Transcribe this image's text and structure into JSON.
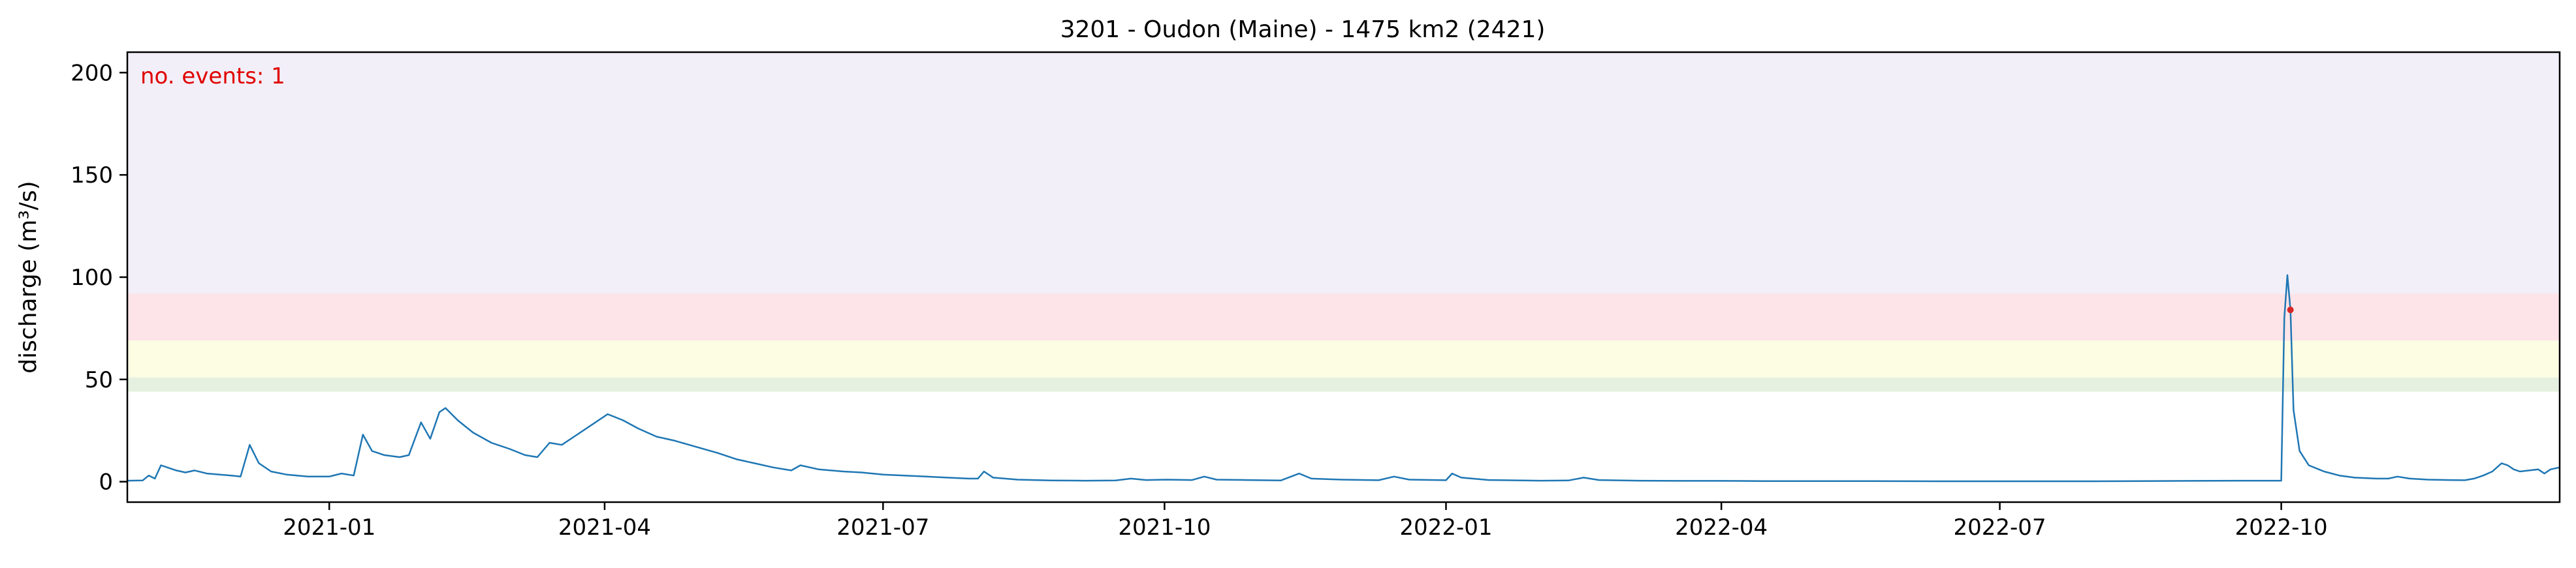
{
  "chart_data": {
    "type": "line",
    "title": "3201 - Oudon (Maine) - 1475 km2 (2421)",
    "ylabel": "discharge (m³/s)",
    "xlabel": "",
    "xlim": [
      "2020-10-27",
      "2022-12-31"
    ],
    "ylim": [
      -10,
      210
    ],
    "grid": false,
    "xticks": [
      {
        "date": "2021-01-01",
        "label": "2021-01"
      },
      {
        "date": "2021-04-01",
        "label": "2021-04"
      },
      {
        "date": "2021-07-01",
        "label": "2021-07"
      },
      {
        "date": "2021-10-01",
        "label": "2021-10"
      },
      {
        "date": "2022-01-01",
        "label": "2022-01"
      },
      {
        "date": "2022-04-01",
        "label": "2022-04"
      },
      {
        "date": "2022-07-01",
        "label": "2022-07"
      },
      {
        "date": "2022-10-01",
        "label": "2022-10"
      }
    ],
    "yticks": [
      0,
      50,
      100,
      150,
      200
    ],
    "threshold_bands": [
      {
        "from": 44,
        "to": 51,
        "color": "#e6f0e0"
      },
      {
        "from": 51,
        "to": 69,
        "color": "#fdfde4"
      },
      {
        "from": 69,
        "to": 92,
        "color": "#fde4e8"
      },
      {
        "from": 92,
        "to": 210,
        "color": "#f2eff9"
      }
    ],
    "series": [
      {
        "color": "#1f77b4",
        "points": [
          [
            "2020-10-27",
            0.5
          ],
          [
            "2020-11-01",
            0.6
          ],
          [
            "2020-11-03",
            3.0
          ],
          [
            "2020-11-05",
            1.5
          ],
          [
            "2020-11-07",
            8.0
          ],
          [
            "2020-11-12",
            5.5
          ],
          [
            "2020-11-15",
            4.5
          ],
          [
            "2020-11-18",
            5.5
          ],
          [
            "2020-11-22",
            4.0
          ],
          [
            "2020-11-30",
            3.0
          ],
          [
            "2020-12-03",
            2.5
          ],
          [
            "2020-12-06",
            18.0
          ],
          [
            "2020-12-09",
            9.0
          ],
          [
            "2020-12-13",
            5.0
          ],
          [
            "2020-12-18",
            3.5
          ],
          [
            "2020-12-25",
            2.5
          ],
          [
            "2021-01-01",
            2.5
          ],
          [
            "2021-01-05",
            4.0
          ],
          [
            "2021-01-09",
            3.0
          ],
          [
            "2021-01-12",
            23.0
          ],
          [
            "2021-01-15",
            15.0
          ],
          [
            "2021-01-19",
            13.0
          ],
          [
            "2021-01-24",
            12.0
          ],
          [
            "2021-01-27",
            13.0
          ],
          [
            "2021-01-31",
            29.0
          ],
          [
            "2021-02-03",
            21.0
          ],
          [
            "2021-02-06",
            34.0
          ],
          [
            "2021-02-08",
            36.0
          ],
          [
            "2021-02-12",
            30.0
          ],
          [
            "2021-02-17",
            24.0
          ],
          [
            "2021-02-23",
            19.0
          ],
          [
            "2021-03-01",
            16.0
          ],
          [
            "2021-03-06",
            13.0
          ],
          [
            "2021-03-10",
            12.0
          ],
          [
            "2021-03-14",
            19.0
          ],
          [
            "2021-03-18",
            18.0
          ],
          [
            "2021-03-23",
            23.0
          ],
          [
            "2021-03-28",
            28.0
          ],
          [
            "2021-04-02",
            33.0
          ],
          [
            "2021-04-07",
            30.0
          ],
          [
            "2021-04-12",
            26.0
          ],
          [
            "2021-04-18",
            22.0
          ],
          [
            "2021-04-24",
            20.0
          ],
          [
            "2021-05-01",
            17.0
          ],
          [
            "2021-05-08",
            14.0
          ],
          [
            "2021-05-14",
            11.0
          ],
          [
            "2021-05-20",
            9.0
          ],
          [
            "2021-05-26",
            7.0
          ],
          [
            "2021-06-01",
            5.5
          ],
          [
            "2021-06-04",
            8.0
          ],
          [
            "2021-06-10",
            6.0
          ],
          [
            "2021-06-18",
            5.0
          ],
          [
            "2021-06-24",
            4.5
          ],
          [
            "2021-07-01",
            3.5
          ],
          [
            "2021-07-08",
            3.0
          ],
          [
            "2021-07-15",
            2.5
          ],
          [
            "2021-07-22",
            2.0
          ],
          [
            "2021-07-29",
            1.5
          ],
          [
            "2021-08-01",
            1.5
          ],
          [
            "2021-08-03",
            5.0
          ],
          [
            "2021-08-06",
            2.0
          ],
          [
            "2021-08-14",
            1.0
          ],
          [
            "2021-08-25",
            0.6
          ],
          [
            "2021-09-05",
            0.5
          ],
          [
            "2021-09-15",
            0.6
          ],
          [
            "2021-09-20",
            1.5
          ],
          [
            "2021-09-25",
            0.8
          ],
          [
            "2021-10-02",
            1.0
          ],
          [
            "2021-10-10",
            0.8
          ],
          [
            "2021-10-14",
            2.5
          ],
          [
            "2021-10-18",
            1.0
          ],
          [
            "2021-10-28",
            0.8
          ],
          [
            "2021-11-08",
            0.6
          ],
          [
            "2021-11-14",
            4.0
          ],
          [
            "2021-11-18",
            1.5
          ],
          [
            "2021-11-28",
            1.0
          ],
          [
            "2021-12-10",
            0.7
          ],
          [
            "2021-12-15",
            2.5
          ],
          [
            "2021-12-20",
            1.0
          ],
          [
            "2022-01-01",
            0.7
          ],
          [
            "2022-01-03",
            4.0
          ],
          [
            "2022-01-06",
            2.0
          ],
          [
            "2022-01-15",
            0.8
          ],
          [
            "2022-02-01",
            0.5
          ],
          [
            "2022-02-10",
            0.6
          ],
          [
            "2022-02-15",
            2.0
          ],
          [
            "2022-02-20",
            0.8
          ],
          [
            "2022-03-05",
            0.5
          ],
          [
            "2022-03-20",
            0.4
          ],
          [
            "2022-04-01",
            0.4
          ],
          [
            "2022-04-15",
            0.3
          ],
          [
            "2022-05-01",
            0.3
          ],
          [
            "2022-05-20",
            0.3
          ],
          [
            "2022-06-10",
            0.2
          ],
          [
            "2022-06-25",
            0.2
          ],
          [
            "2022-07-01",
            0.2
          ],
          [
            "2022-08-01",
            0.2
          ],
          [
            "2022-08-15",
            0.3
          ],
          [
            "2022-09-01",
            0.4
          ],
          [
            "2022-09-20",
            0.5
          ],
          [
            "2022-10-01",
            0.5
          ],
          [
            "2022-10-02",
            80.0
          ],
          [
            "2022-10-03",
            101.0
          ],
          [
            "2022-10-04",
            84.0
          ],
          [
            "2022-10-05",
            35.0
          ],
          [
            "2022-10-07",
            15.0
          ],
          [
            "2022-10-10",
            8.0
          ],
          [
            "2022-10-15",
            5.0
          ],
          [
            "2022-10-20",
            3.0
          ],
          [
            "2022-10-25",
            2.0
          ],
          [
            "2022-11-01",
            1.5
          ],
          [
            "2022-11-05",
            1.5
          ],
          [
            "2022-11-08",
            2.5
          ],
          [
            "2022-11-12",
            1.5
          ],
          [
            "2022-11-18",
            1.0
          ],
          [
            "2022-11-25",
            0.8
          ],
          [
            "2022-11-30",
            0.7
          ],
          [
            "2022-12-03",
            1.5
          ],
          [
            "2022-12-06",
            3.0
          ],
          [
            "2022-12-09",
            5.0
          ],
          [
            "2022-12-12",
            9.0
          ],
          [
            "2022-12-14",
            8.0
          ],
          [
            "2022-12-16",
            6.0
          ],
          [
            "2022-12-18",
            5.0
          ],
          [
            "2022-12-21",
            5.5
          ],
          [
            "2022-12-24",
            6.0
          ],
          [
            "2022-12-26",
            4.0
          ],
          [
            "2022-12-28",
            6.0
          ],
          [
            "2022-12-31",
            7.0
          ]
        ]
      }
    ],
    "events": [
      {
        "date": "2022-10-04",
        "value": 84.0,
        "color": "#d62728"
      }
    ],
    "annotation": {
      "text": "no. events: 1",
      "color": "#e00000",
      "position": "top-left"
    }
  }
}
